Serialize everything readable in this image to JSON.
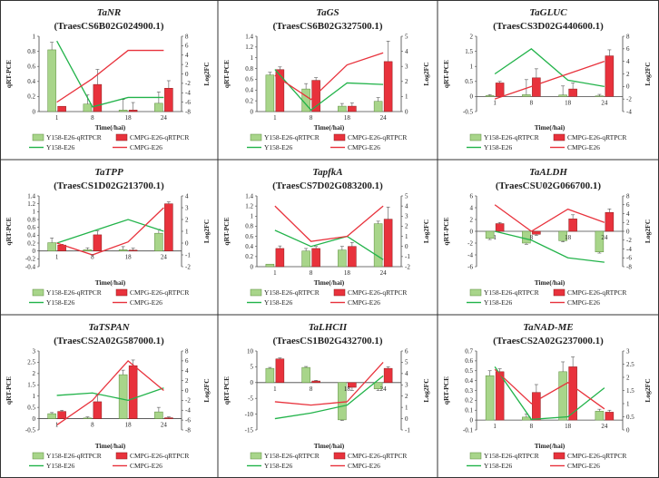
{
  "figure": {
    "colors": {
      "green": "#a8d58a",
      "green_edge": "#5a8a3a",
      "red": "#e8323c",
      "red_edge": "#8a1a1a",
      "green_line": "#22b34a",
      "red_line": "#e8323c"
    },
    "panel_count": 9
  },
  "chart_data": [
    {
      "type": "bar+line",
      "gene": "TaNR",
      "transcript": "(TraesCS6B02G024900.1)",
      "categories": [
        "1",
        "8",
        "18",
        "24"
      ],
      "xlabel": "Time(/hai)",
      "ylabel": "qRT-PCE",
      "y2label": "Log2FC",
      "ylim": [
        0,
        1
      ],
      "yticks": [
        0,
        0.2,
        0.4,
        0.6,
        0.8,
        1
      ],
      "y2lim": [
        -8,
        8
      ],
      "y2ticks": [
        -8,
        -6,
        -4,
        -2,
        0,
        2,
        4,
        6,
        8
      ],
      "bar_series": [
        {
          "name": "Y158-E26-qRTPCR",
          "values": [
            0.82,
            0.1,
            0.02,
            0.11
          ],
          "errors": [
            0.1,
            0.12,
            0.14,
            0.15
          ]
        },
        {
          "name": "CMPG-E26-qRTPCR",
          "values": [
            0.07,
            0.36,
            0.02,
            0.31
          ],
          "errors": [
            0,
            0.2,
            0.1,
            0.1
          ]
        }
      ],
      "line_series": [
        {
          "name": "Y158-E26",
          "values": [
            7,
            -7,
            -5,
            -5
          ]
        },
        {
          "name": "CMPG-E26",
          "values": [
            -6,
            -1,
            5,
            5
          ]
        }
      ]
    },
    {
      "type": "bar+line",
      "gene": "TaGS",
      "transcript": "(TraesCS6B02G327500.1)",
      "categories": [
        "1",
        "8",
        "18",
        "24"
      ],
      "xlabel": "Time(/hai)",
      "ylabel": "qRT-PCE",
      "y2label": "Log2FC",
      "ylim": [
        0,
        1.4
      ],
      "yticks": [
        0,
        0.2,
        0.4,
        0.6,
        0.8,
        1,
        1.2,
        1.4
      ],
      "y2lim": [
        0,
        5
      ],
      "y2ticks": [
        0,
        1,
        2,
        3,
        4,
        5
      ],
      "bar_series": [
        {
          "name": "Y158-E26-qRTPCR",
          "values": [
            0.68,
            0.42,
            0.1,
            0.19
          ],
          "errors": [
            0.05,
            0.1,
            0.05,
            0.07
          ]
        },
        {
          "name": "CMPG-E26-qRTPCR",
          "values": [
            0.78,
            0.58,
            0.1,
            0.93
          ],
          "errors": [
            0.05,
            0.05,
            0.06,
            0.38
          ]
        }
      ],
      "line_series": [
        {
          "name": "Y158-E26",
          "values": [
            2.8,
            0.1,
            1.9,
            1.8
          ]
        },
        {
          "name": "CMPG-E26",
          "values": [
            2.4,
            0.8,
            3.1,
            3.9
          ]
        }
      ]
    },
    {
      "type": "bar+line",
      "gene": "TaGLUC",
      "transcript": "(TraesCS3D02G440600.1)",
      "categories": [
        "1",
        "8",
        "18",
        "24"
      ],
      "xlabel": "Time(/hai)",
      "ylabel": "qRT-PCE",
      "y2label": "Log2FC",
      "ylim": [
        -0.5,
        2
      ],
      "yticks": [
        -0.5,
        0,
        0.5,
        1,
        1.5,
        2
      ],
      "y2lim": [
        -4,
        8
      ],
      "y2ticks": [
        -4,
        -2,
        0,
        2,
        4,
        6,
        8
      ],
      "bar_series": [
        {
          "name": "Y158-E26-qRTPCR",
          "values": [
            0.03,
            0.06,
            0.05,
            0.02
          ],
          "errors": [
            0.03,
            0.5,
            0.3,
            0.05
          ]
        },
        {
          "name": "CMPG-E26-qRTPCR",
          "values": [
            0.45,
            0.62,
            0.25,
            1.35
          ],
          "errors": [
            0.05,
            0.3,
            0.2,
            0.2
          ]
        }
      ],
      "line_series": [
        {
          "name": "Y158-E26",
          "values": [
            2,
            6,
            1,
            0
          ]
        },
        {
          "name": "CMPG-E26",
          "values": [
            -2,
            0,
            2,
            4
          ]
        }
      ]
    },
    {
      "type": "bar+line",
      "gene": "TaTPP",
      "transcript": "(TraesCS1D02G213700.1)",
      "categories": [
        "1",
        "8",
        "18",
        "24"
      ],
      "xlabel": "Time(/hai)",
      "ylabel": "qRT-PCE",
      "y2label": "Log2FC",
      "ylim": [
        -0.4,
        1.4
      ],
      "yticks": [
        -0.4,
        -0.2,
        0,
        0.2,
        0.4,
        0.6,
        0.8,
        1,
        1.2,
        1.4
      ],
      "y2lim": [
        -2,
        4
      ],
      "y2ticks": [
        -2,
        -1,
        0,
        1,
        2,
        3,
        4
      ],
      "bar_series": [
        {
          "name": "Y158-E26-qRTPCR",
          "values": [
            0.21,
            0.03,
            0.03,
            0.45
          ],
          "errors": [
            0.12,
            0.05,
            0.08,
            0.1
          ]
        },
        {
          "name": "CMPG-E26-qRTPCR",
          "values": [
            0.15,
            0.41,
            0.02,
            1.2
          ],
          "errors": [
            0.02,
            0.1,
            0.05,
            0.05
          ]
        }
      ],
      "line_series": [
        {
          "name": "Y158-E26",
          "values": [
            0,
            1,
            2,
            1
          ]
        },
        {
          "name": "CMPG-E26",
          "values": [
            0,
            -1,
            0.1,
            3
          ]
        }
      ]
    },
    {
      "type": "bar+line",
      "gene": "TapfkA",
      "transcript": "(TraesCS7D02G083200.1)",
      "categories": [
        "1",
        "8",
        "18",
        "24"
      ],
      "xlabel": "Time(/hai)",
      "ylabel": "qRT-PCE",
      "y2label": "Log2FC",
      "ylim": [
        0,
        1.4
      ],
      "yticks": [
        0,
        0.2,
        0.4,
        0.6,
        0.8,
        1,
        1.2,
        1.4
      ],
      "y2lim": [
        -2,
        5
      ],
      "y2ticks": [
        -2,
        -1,
        0,
        1,
        2,
        3,
        4,
        5
      ],
      "bar_series": [
        {
          "name": "Y158-E26-qRTPCR",
          "values": [
            0.05,
            0.31,
            0.33,
            0.85
          ],
          "errors": [
            0,
            0.05,
            0.07,
            0.05
          ]
        },
        {
          "name": "CMPG-E26-qRTPCR",
          "values": [
            0.36,
            0.36,
            0.4,
            0.94
          ],
          "errors": [
            0.05,
            0.04,
            0.08,
            0.24
          ]
        }
      ],
      "line_series": [
        {
          "name": "Y158-E26",
          "values": [
            1.6,
            0,
            1,
            -1.3
          ]
        },
        {
          "name": "CMPG-E26",
          "values": [
            4,
            0.5,
            1,
            4
          ]
        }
      ]
    },
    {
      "type": "bar+line",
      "gene": "TaALDH",
      "transcript": "(TraesCSU02G066700.1)",
      "categories": [
        "1",
        "8",
        "18",
        "24"
      ],
      "xlabel": "Time(/hai)",
      "ylabel": "qRT-PCE",
      "y2label": "Log2FC",
      "ylim": [
        -6,
        6
      ],
      "yticks": [
        -6,
        -4,
        -2,
        0,
        2,
        4,
        6
      ],
      "y2lim": [
        -8,
        8
      ],
      "y2ticks": [
        -8,
        -6,
        -4,
        -2,
        0,
        2,
        4,
        6,
        8
      ],
      "bar_series": [
        {
          "name": "Y158-E26-qRTPCR",
          "values": [
            -1.2,
            -2,
            -1.6,
            -3.5
          ],
          "errors": [
            0.2,
            0.2,
            0.2,
            0.2
          ]
        },
        {
          "name": "CMPG-E26-qRTPCR",
          "values": [
            1.3,
            -0.5,
            2.1,
            3.2
          ],
          "errors": [
            0.2,
            0.2,
            0.7,
            0.6
          ]
        }
      ],
      "line_series": [
        {
          "name": "Y158-E26",
          "values": [
            0,
            -2,
            -6,
            -7
          ]
        },
        {
          "name": "CMPG-E26",
          "values": [
            6,
            0,
            5,
            2
          ]
        }
      ]
    },
    {
      "type": "bar+line",
      "gene": "TaTSPAN",
      "transcript": "(TraesCS2A02G587000.1)",
      "categories": [
        "1",
        "8",
        "18",
        "24"
      ],
      "xlabel": "Time(/hai)",
      "ylabel": "qRT-PCE",
      "y2label": "Log2FC",
      "ylim": [
        -0.5,
        3
      ],
      "yticks": [
        -0.5,
        0,
        0.5,
        1,
        1.5,
        2,
        2.5,
        3
      ],
      "y2lim": [
        -8,
        8
      ],
      "y2ticks": [
        -8,
        -6,
        -4,
        -2,
        0,
        2,
        4,
        6,
        8
      ],
      "bar_series": [
        {
          "name": "Y158-E26-qRTPCR",
          "values": [
            0.22,
            0.03,
            1.95,
            0.3
          ],
          "errors": [
            0.05,
            0.05,
            0.2,
            0.2
          ]
        },
        {
          "name": "CMPG-E26-qRTPCR",
          "values": [
            0.32,
            0.75,
            2.35,
            0.04
          ],
          "errors": [
            0.05,
            0.3,
            0.25,
            0.04
          ]
        }
      ],
      "line_series": [
        {
          "name": "Y158-E26",
          "values": [
            -1,
            -0.5,
            -2,
            0.5
          ]
        },
        {
          "name": "CMPG-E26",
          "values": [
            -7,
            -2,
            6,
            0
          ]
        }
      ]
    },
    {
      "type": "bar+line",
      "gene": "TaLHCII",
      "transcript": "(TraesCS1B02G432700.1)",
      "categories": [
        "1",
        "8",
        "18",
        "24"
      ],
      "xlabel": "Time(/hai)",
      "ylabel": "qRT-PCE",
      "y2label": "Log2FC",
      "ylim": [
        -15,
        10
      ],
      "yticks": [
        -15,
        -10,
        -5,
        0,
        5,
        10
      ],
      "y2lim": [
        -1,
        6
      ],
      "y2ticks": [
        -1,
        0,
        1,
        2,
        3,
        4,
        5,
        6
      ],
      "bar_series": [
        {
          "name": "Y158-E26-qRTPCR",
          "values": [
            4.5,
            4.8,
            -11.8,
            -2
          ],
          "errors": [
            0.3,
            0.3,
            0.2,
            0.5
          ]
        },
        {
          "name": "CMPG-E26-qRTPCR",
          "values": [
            7.5,
            0.5,
            -1.5,
            4.5
          ],
          "errors": [
            0.3,
            0.2,
            1,
            0.5
          ]
        }
      ],
      "line_series": [
        {
          "name": "Y158-E26",
          "values": [
            0,
            0.5,
            1.2,
            3.8
          ]
        },
        {
          "name": "CMPG-E26",
          "values": [
            1.5,
            1.2,
            1.5,
            5
          ]
        }
      ]
    },
    {
      "type": "bar+line",
      "gene": "TaNAD-ME",
      "transcript": "(TraesCS2A02G237000.1)",
      "categories": [
        "1",
        "8",
        "18",
        "24"
      ],
      "xlabel": "Time(/hai)",
      "ylabel": "qRT-PCE",
      "y2label": "Log2FC",
      "ylim": [
        -0.1,
        0.7
      ],
      "yticks": [
        -0.1,
        0,
        0.1,
        0.2,
        0.3,
        0.4,
        0.5,
        0.6,
        0.7
      ],
      "y2lim": [
        0,
        3
      ],
      "y2ticks": [
        0,
        0.5,
        1,
        1.5,
        2,
        2.5,
        3
      ],
      "bar_series": [
        {
          "name": "Y158-E26-qRTPCR",
          "values": [
            0.45,
            0.03,
            0.49,
            0.09
          ],
          "errors": [
            0.05,
            0.03,
            0.1,
            0.02
          ]
        },
        {
          "name": "CMPG-E26-qRTPCR",
          "values": [
            0.49,
            0.28,
            0.54,
            0.08
          ],
          "errors": [
            0.03,
            0.08,
            0.1,
            0.02
          ]
        }
      ],
      "line_series": [
        {
          "name": "Y158-E26",
          "values": [
            2.4,
            0.4,
            0.5,
            1.6
          ]
        },
        {
          "name": "CMPG-E26",
          "values": [
            2.3,
            1,
            1.8,
            0.8
          ]
        }
      ]
    }
  ]
}
